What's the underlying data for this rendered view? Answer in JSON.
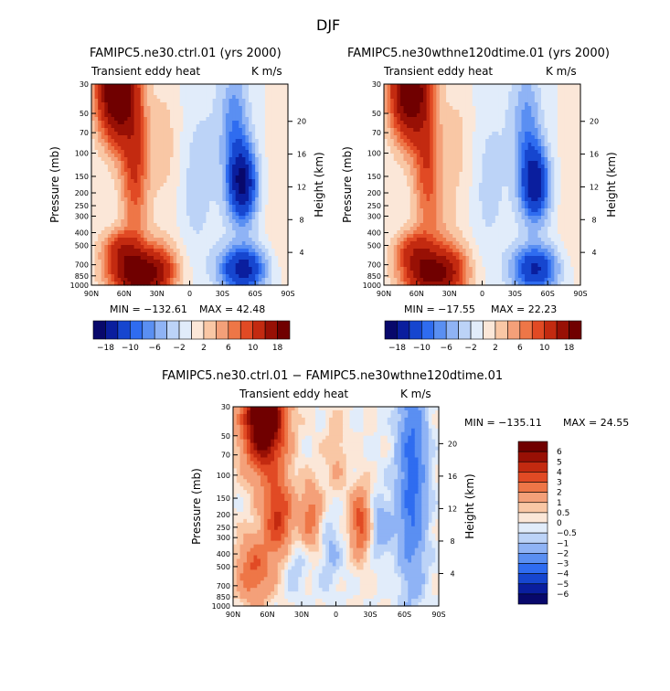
{
  "page_title": "DJF",
  "chart_data": [
    {
      "type": "contour",
      "title": "FAMIPC5.ne30.ctrl.01 (yrs 2000)",
      "subtitle_left": "Transient eddy heat",
      "subtitle_right": "K m/s",
      "xlabel": "",
      "ylabel": "Pressure (mb)",
      "ylabel_right": "Height (km)",
      "x_ticks": [
        "90N",
        "60N",
        "30N",
        "0",
        "30S",
        "60S",
        "90S"
      ],
      "y_ticks": [
        "30",
        "50",
        "70",
        "100",
        "150",
        "200",
        "250",
        "300",
        "400",
        "500",
        "700",
        "850",
        "1000"
      ],
      "height_ticks": [
        "4",
        "8",
        "12",
        "16",
        "20"
      ],
      "min_label": "MIN = −132.61",
      "max_label": "MAX = 42.48",
      "min": -132.61,
      "max": 42.48,
      "colorbar_labels": [
        "−18",
        "−10",
        "−6",
        "−2",
        "2",
        "6",
        "10",
        "18"
      ],
      "colorbar_orientation": "horizontal"
    },
    {
      "type": "contour",
      "title": "FAMIPC5.ne30wthne120dtime.01 (yrs 2000)",
      "subtitle_left": "Transient eddy heat",
      "subtitle_right": "K m/s",
      "xlabel": "",
      "ylabel": "Pressure (mb)",
      "ylabel_right": "Height (km)",
      "x_ticks": [
        "90N",
        "60N",
        "30N",
        "0",
        "30S",
        "60S",
        "90S"
      ],
      "y_ticks": [
        "30",
        "50",
        "70",
        "100",
        "150",
        "200",
        "250",
        "300",
        "400",
        "500",
        "700",
        "850",
        "1000"
      ],
      "height_ticks": [
        "4",
        "8",
        "12",
        "16",
        "20"
      ],
      "min_label": "MIN = −17.55",
      "max_label": "MAX = 22.23",
      "min": -17.55,
      "max": 22.23,
      "colorbar_labels": [
        "−18",
        "−10",
        "−6",
        "−2",
        "2",
        "6",
        "10",
        "18"
      ],
      "colorbar_orientation": "horizontal"
    },
    {
      "type": "contour",
      "title": "FAMIPC5.ne30.ctrl.01 − FAMIPC5.ne30wthne120dtime.01",
      "subtitle_left": "Transient eddy heat",
      "subtitle_right": "K m/s",
      "xlabel": "",
      "ylabel": "Pressure (mb)",
      "ylabel_right": "Height (km)",
      "x_ticks": [
        "90N",
        "60N",
        "30N",
        "0",
        "30S",
        "60S",
        "90S"
      ],
      "y_ticks": [
        "30",
        "50",
        "70",
        "100",
        "150",
        "200",
        "250",
        "300",
        "400",
        "500",
        "700",
        "850",
        "1000"
      ],
      "height_ticks": [
        "4",
        "8",
        "12",
        "16",
        "20"
      ],
      "min_label": "MIN = −135.11",
      "max_label": "MAX = 24.55",
      "min": -135.11,
      "max": 24.55,
      "colorbar_labels": [
        "6",
        "5",
        "4",
        "3",
        "2",
        "1",
        "0.5",
        "0",
        "−0.5",
        "−1",
        "−2",
        "−3",
        "−4",
        "−5",
        "−6"
      ],
      "colorbar_orientation": "vertical"
    }
  ],
  "colors": {
    "diverging": [
      "#08086b",
      "#0a1e9e",
      "#1646cf",
      "#2f6cf0",
      "#5a8ff2",
      "#8fb3f5",
      "#bcd3f7",
      "#e1ecfa",
      "#fbe7d8",
      "#f9c7a5",
      "#f4a079",
      "#ee7647",
      "#e14a24",
      "#c32a10",
      "#981005",
      "#700000"
    ]
  }
}
